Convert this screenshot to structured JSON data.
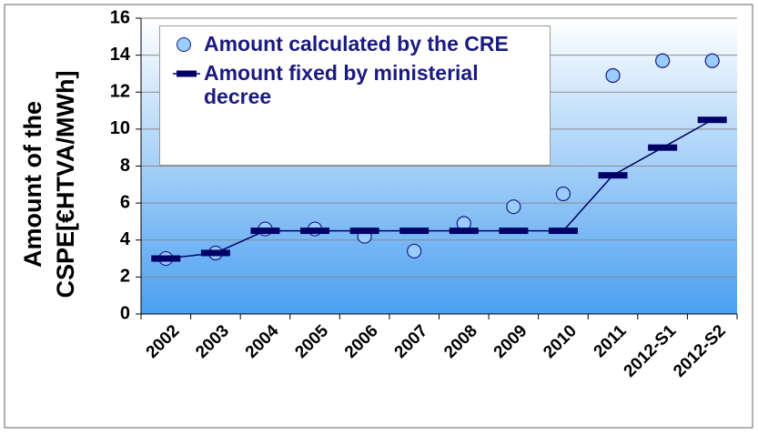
{
  "chart_data": {
    "type": "line",
    "ylabel": [
      "Amount of the",
      "CSPE[€HTVA/MWh]"
    ],
    "categories": [
      "2002",
      "2003",
      "2004",
      "2005",
      "2006",
      "2007",
      "2008",
      "2009",
      "2010",
      "2011",
      "2012-S1",
      "2012-S2"
    ],
    "series": [
      {
        "name": "Amount calculated by the CRE",
        "color": "#99ccff",
        "marker": "circle",
        "values": [
          3.0,
          3.3,
          4.6,
          4.6,
          4.2,
          3.4,
          4.9,
          5.8,
          6.5,
          12.9,
          13.7,
          13.7
        ]
      },
      {
        "name": "Amount fixed by ministerial decree",
        "color": "#000066",
        "marker": "dash",
        "values": [
          3.0,
          3.3,
          4.5,
          4.5,
          4.5,
          4.5,
          4.5,
          4.5,
          4.5,
          7.5,
          9.0,
          10.5
        ]
      }
    ],
    "ylim": [
      0,
      16
    ],
    "yticks": [
      0,
      2,
      4,
      6,
      8,
      10,
      12,
      14,
      16
    ],
    "grid": true
  }
}
